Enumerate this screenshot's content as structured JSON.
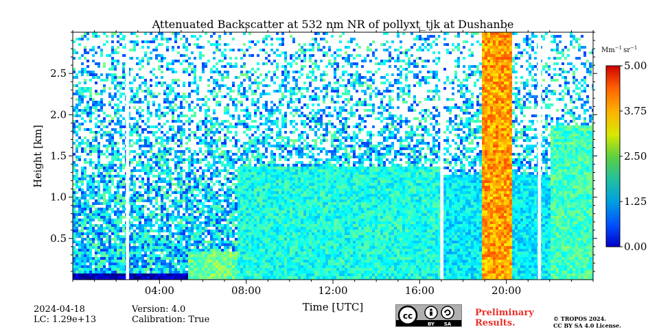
{
  "chart_data": {
    "type": "heatmap",
    "title": "Attenuated Backscatter at 532 nm NR of pollyxt_tjk at Dushanbe",
    "xlabel": "Time [UTC]",
    "ylabel": "Height [km]",
    "x_ticks": [
      "04:00",
      "08:00",
      "12:00",
      "16:00",
      "20:00"
    ],
    "x_tick_hours": [
      4,
      8,
      12,
      16,
      20
    ],
    "y_ticks": [
      "0.5",
      "1.0",
      "1.5",
      "2.0",
      "2.5"
    ],
    "y_tick_values": [
      0.5,
      1.0,
      1.5,
      2.0,
      2.5
    ],
    "xlim_hours": [
      0,
      24
    ],
    "ylim_km": [
      0,
      3.0
    ],
    "colorbar": {
      "label": "Mm⁻¹ sr⁻¹",
      "label_main": "Mm",
      "label_exp1": "−1",
      "label_mid": "sr",
      "label_exp2": "−1",
      "min": 0.0,
      "max": 5.0,
      "ticks": [
        "0.00",
        "1.25",
        "2.50",
        "3.75",
        "5.00"
      ],
      "tick_values": [
        0.0,
        1.25,
        2.5,
        3.75,
        5.0
      ],
      "colormap": "jet"
    },
    "data_gaps_hours": [
      [
        2.45,
        2.6
      ],
      [
        16.95,
        17.1
      ],
      [
        21.45,
        21.6
      ]
    ],
    "layers": [
      {
        "name": "surface-dense-layer",
        "start": 0,
        "end": 24,
        "top_km": 0.08,
        "value": 0.3
      },
      {
        "name": "boundary-layer-morning",
        "start": 5.2,
        "end": 7.5,
        "top_km": 0.35,
        "value": 2.4
      },
      {
        "name": "boundary-layer-day",
        "start": 7.5,
        "end": 17.0,
        "top_km": 1.4,
        "value": 2.0
      },
      {
        "name": "residual-layer-evening",
        "start": 17.0,
        "end": 24,
        "top_km": 1.3,
        "value": 1.8
      },
      {
        "name": "elevated-aerosol-late",
        "start": 22.0,
        "end": 24,
        "top_km": 1.9,
        "value": 2.2
      },
      {
        "name": "cloud-signal-top",
        "start": 18.8,
        "end": 20.2,
        "top_km": 3.0,
        "value": 3.6
      }
    ]
  },
  "footer": {
    "date": "2024-04-18",
    "lc": "LC: 1.29e+13",
    "version": "Version: 4.0",
    "calibration": "Calibration: True",
    "prelim_line1": "Preliminary",
    "prelim_line2": "Results.",
    "copyright_line1": "© TROPOS 2024.",
    "copyright_line2": "CC BY SA 4.0 License.",
    "license_badge": {
      "main": "cc",
      "by": "BY",
      "sa": "SA"
    }
  }
}
